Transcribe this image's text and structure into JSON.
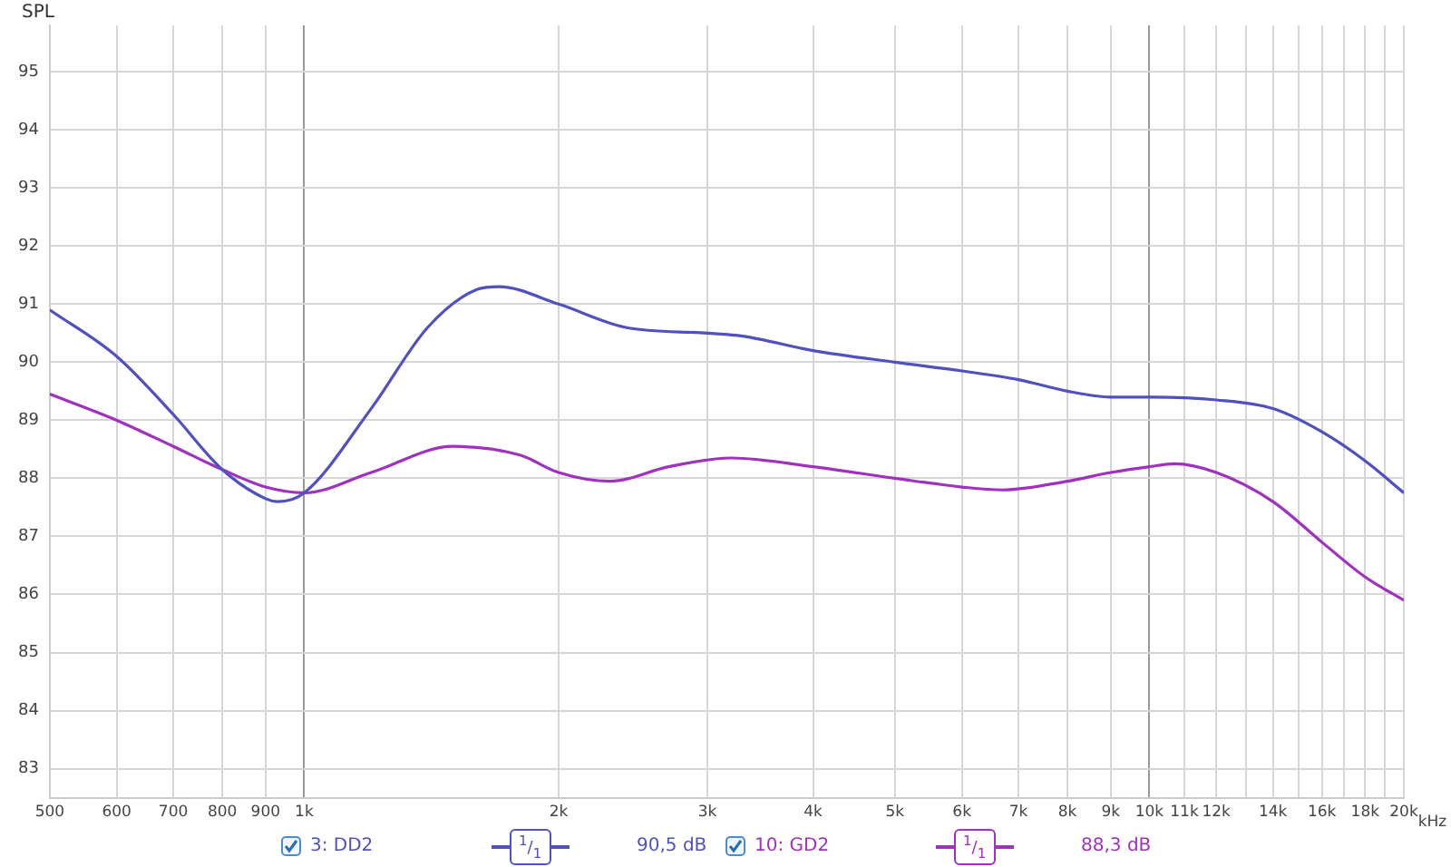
{
  "chart_data": {
    "type": "line",
    "ylabel": "SPL",
    "xlim": [
      500,
      20000
    ],
    "ylim": [
      82.5,
      95.8
    ],
    "log": "x",
    "xticks": [
      500,
      600,
      700,
      800,
      900,
      {
        "value": 1000,
        "label": "1k"
      },
      {
        "value": 2000,
        "label": "2k"
      },
      {
        "value": 3000,
        "label": "3k"
      },
      {
        "value": 4000,
        "label": "4k"
      },
      {
        "value": 5000,
        "label": "5k"
      },
      {
        "value": 6000,
        "label": "6k"
      },
      {
        "value": 7000,
        "label": "7k"
      },
      {
        "value": 8000,
        "label": "8k"
      },
      {
        "value": 9000,
        "label": "9k"
      },
      {
        "value": 10000,
        "label": "10k"
      },
      {
        "value": 11000,
        "label": "11k"
      },
      {
        "value": 12000,
        "label": "12k"
      },
      {
        "value": 13000,
        "label": null
      },
      {
        "value": 14000,
        "label": "14k"
      },
      {
        "value": 15000,
        "label": null
      },
      {
        "value": 16000,
        "label": "16k"
      },
      {
        "value": 17000,
        "label": null
      },
      {
        "value": 18000,
        "label": "18k"
      },
      {
        "value": 19000,
        "label": null
      },
      {
        "value": 20000,
        "label": "20k"
      }
    ],
    "xlabel": "kHz",
    "yticks": [
      83,
      84,
      85,
      86,
      87,
      88,
      89,
      90,
      91,
      92,
      93,
      94,
      95
    ],
    "grid": true,
    "legend": "bottom",
    "marker": "none",
    "line_style": "solid",
    "annotations": [
      "$^{1}$/$_{1}$",
      "90,5 dB",
      "$^{1}$/$_{1}$",
      "88,3 dB"
    ],
    "series": [
      {
        "name": "3: DD2",
        "color": "#5050c0",
        "x": [
          500,
          600,
          700,
          800,
          900,
          930,
          1000,
          1200,
          1400,
          1600,
          1700,
          2000,
          2400,
          3000,
          3300,
          4000,
          5000,
          6000,
          7000,
          8000,
          9000,
          10000,
          12000,
          14000,
          16000,
          18000,
          20000
        ],
        "values": [
          90.9,
          90.1,
          89.1,
          88.15,
          87.65,
          87.6,
          87.75,
          89.2,
          90.6,
          91.25,
          91.3,
          91.0,
          90.6,
          90.5,
          90.45,
          90.2,
          90.0,
          89.85,
          89.7,
          89.5,
          89.4,
          89.4,
          89.35,
          89.2,
          88.8,
          88.3,
          87.75
        ]
      },
      {
        "name": "10: GD2",
        "color": "#a030c0",
        "x": [
          500,
          600,
          700,
          800,
          900,
          1000,
          1200,
          1500,
          1800,
          2000,
          2300,
          2700,
          3200,
          4000,
          5000,
          6000,
          6700,
          8000,
          9000,
          10000,
          10700,
          12000,
          14000,
          16000,
          18000,
          20000
        ],
        "values": [
          89.45,
          89.0,
          88.55,
          88.15,
          87.85,
          87.75,
          88.1,
          88.55,
          88.4,
          88.1,
          87.95,
          88.2,
          88.35,
          88.2,
          88.0,
          87.85,
          87.8,
          87.95,
          88.1,
          88.2,
          88.25,
          88.1,
          87.6,
          86.9,
          86.3,
          85.9
        ]
      }
    ]
  }
}
